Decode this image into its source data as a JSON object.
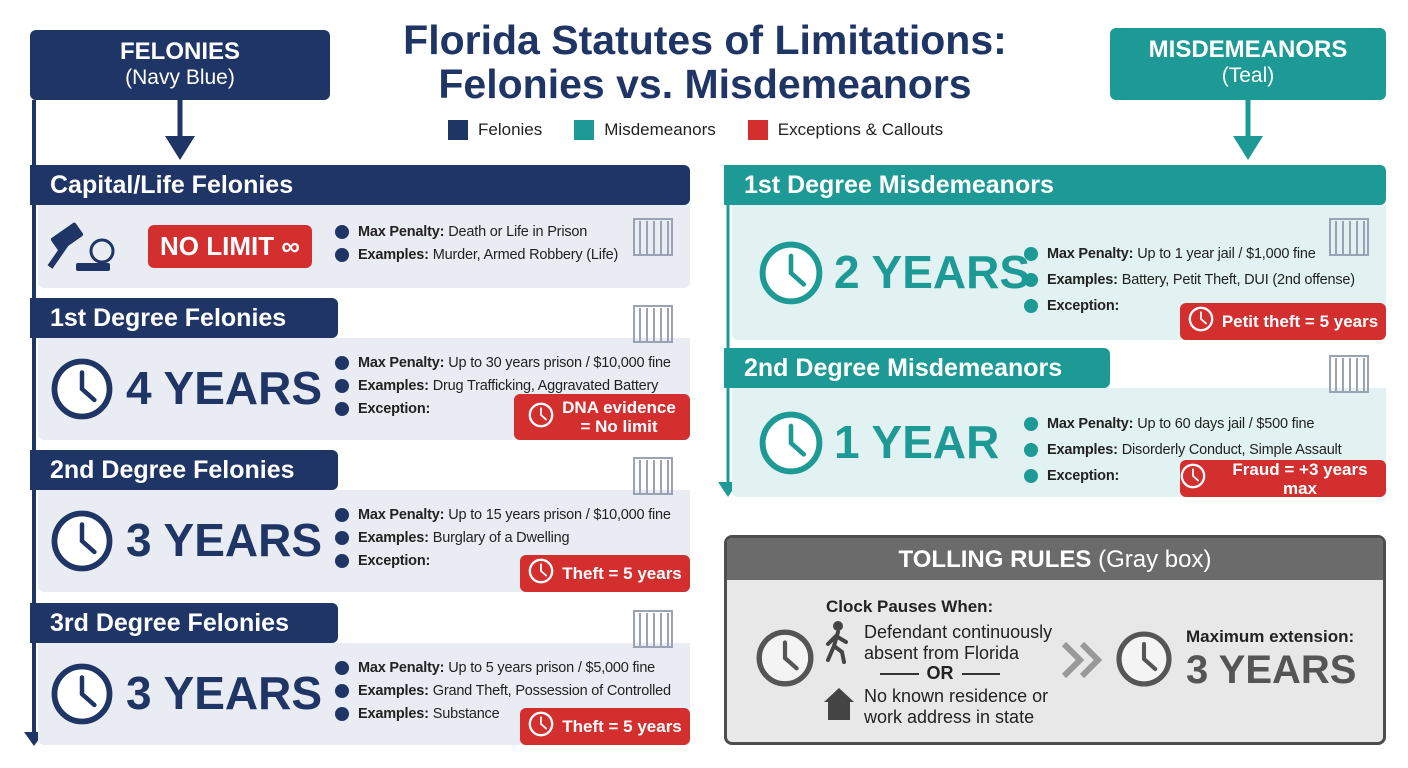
{
  "header": {
    "title_lines": [
      "Florida Statutes of Limitations:",
      "Felonies vs. Misdemeanors"
    ],
    "legend": [
      {
        "label": "Felonies",
        "color": "#1f3566"
      },
      {
        "label": "Misdemeanors",
        "color": "#1e9a96"
      },
      {
        "label": "Exceptions & Callouts",
        "color": "#d32f2f"
      }
    ]
  },
  "felonies": {
    "label": "FELONIES",
    "sublabel": "(Navy Blue)",
    "sections": [
      {
        "heading": "Capital/Life Felonies",
        "period": "NO LIMIT ∞",
        "details": [
          {
            "label": "Max Penalty:",
            "text": "Death or Life in Prison"
          },
          {
            "label": "Examples:",
            "text": "Murder, Armed Robbery (Life)"
          }
        ]
      },
      {
        "heading": "1st Degree Felonies",
        "period": "4 YEARS",
        "details": [
          {
            "label": "Max Penalty:",
            "text": "Up to 30 years prison / $10,000 fine"
          },
          {
            "label": "Examples:",
            "text": "Drug Trafficking, Aggravated Battery"
          },
          {
            "label": "Exception:"
          }
        ],
        "callout": [
          "DNA evidence",
          "= No limit"
        ]
      },
      {
        "heading": "2nd Degree Felonies",
        "period": "3 YEARS",
        "details": [
          {
            "label": "Max Penalty:",
            "text": "Up to 15 years prison / $10,000 fine"
          },
          {
            "label": "Examples:",
            "text": "Burglary of a Dwelling"
          },
          {
            "label": "Exception:"
          }
        ],
        "callout": [
          "Theft = 5 years"
        ]
      },
      {
        "heading": "3rd Degree Felonies",
        "period": "3 YEARS",
        "details": [
          {
            "label": "Max Penalty:",
            "text": "Up to 5 years prison / $5,000 fine"
          },
          {
            "label": "Examples:",
            "text": "Grand Theft, Possession of Controlled"
          },
          {
            "label": "Examples:",
            "text": "Substance"
          }
        ],
        "callout": [
          "Theft = 5 years"
        ]
      }
    ]
  },
  "misdemeanors": {
    "label": "MISDEMEANORS",
    "sublabel": "(Teal)",
    "sections": [
      {
        "heading": "1st Degree Misdemeanors",
        "period": "2 YEARS",
        "details": [
          {
            "label": "Max Penalty:",
            "text": "Up to 1 year jail / $1,000 fine"
          },
          {
            "label": "Examples:",
            "text": "Battery, Petit Theft, DUI (2nd offense)"
          },
          {
            "label": "Exception:"
          }
        ],
        "callout": [
          "Petit theft = 5 years"
        ]
      },
      {
        "heading": "2nd Degree Misdemeanors",
        "period": "1 YEAR",
        "details": [
          {
            "label": "Max Penalty:",
            "text": "Up to 60 days jail / $500 fine"
          },
          {
            "label": "Examples:",
            "text": "Disorderly Conduct, Simple Assault"
          },
          {
            "label": "Exception:"
          }
        ],
        "callout": [
          "Fraud = +3 years max"
        ]
      }
    ]
  },
  "tolling": {
    "title": "TOLLING RULES",
    "subtitle": "(Gray box)",
    "lead": "Clock Pauses When:",
    "condition_1": [
      "Defendant continuously",
      "absent from Florida"
    ],
    "separator": "OR",
    "condition_2": [
      "No known residence or",
      "work address in state"
    ],
    "max_label": "Maximum extension:",
    "max_value": "3 YEARS"
  }
}
